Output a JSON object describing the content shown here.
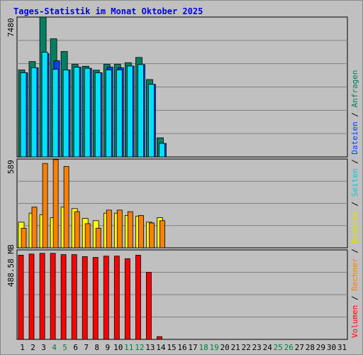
{
  "title": "Tages-Statistik im Monat Oktober 2025",
  "colors": {
    "anfragen": "#008060",
    "dateien": "#0040ff",
    "seiten": "#00e0ff",
    "besuche": "#ffff00",
    "rechner": "#ff8000",
    "volumen": "#ff0000",
    "weekend_label": "#008040",
    "weekday_label": "#000000",
    "background": "#c0c0c0"
  },
  "chart_data": [
    {
      "type": "bar",
      "title": "Tages-Statistik im Monat Oktober 2025",
      "y_max_label": "7480",
      "ylim": [
        0,
        7480
      ],
      "grid": true,
      "categories": [
        "1",
        "2",
        "3",
        "4",
        "5",
        "6",
        "7",
        "8",
        "9",
        "10",
        "11",
        "12",
        "13",
        "14",
        "15",
        "16",
        "17",
        "18",
        "19",
        "20",
        "21",
        "22",
        "23",
        "24",
        "25",
        "26",
        "27",
        "28",
        "29",
        "30",
        "31"
      ],
      "series": [
        {
          "name": "Anfragen",
          "values": [
            4650,
            5100,
            7480,
            6320,
            5640,
            4950,
            4850,
            4640,
            4950,
            4950,
            5040,
            5320,
            4140,
            1020,
            0,
            0,
            0,
            0,
            0,
            0,
            0,
            0,
            0,
            0,
            0,
            0,
            0,
            0,
            0,
            0,
            0
          ]
        },
        {
          "name": "Dateien",
          "values": [
            4500,
            4770,
            5520,
            5140,
            4650,
            4800,
            4740,
            4500,
            4800,
            4770,
            4860,
            4940,
            3880,
            720,
            0,
            0,
            0,
            0,
            0,
            0,
            0,
            0,
            0,
            0,
            0,
            0,
            0,
            0,
            0,
            0,
            0
          ]
        },
        {
          "name": "Seiten",
          "values": [
            4500,
            4770,
            5600,
            4680,
            4650,
            4800,
            4740,
            4500,
            4650,
            4650,
            4860,
            4940,
            3880,
            720,
            0,
            0,
            0,
            0,
            0,
            0,
            0,
            0,
            0,
            0,
            0,
            0,
            0,
            0,
            0,
            0,
            0
          ]
        }
      ]
    },
    {
      "type": "bar",
      "y_max_label": "589",
      "ylim": [
        0,
        589
      ],
      "grid": true,
      "categories": [
        "1",
        "2",
        "3",
        "4",
        "5",
        "6",
        "7",
        "8",
        "9",
        "10",
        "11",
        "12",
        "13",
        "14",
        "15",
        "16",
        "17",
        "18",
        "19",
        "20",
        "21",
        "22",
        "23",
        "24",
        "25",
        "26",
        "27",
        "28",
        "29",
        "30",
        "31"
      ],
      "series": [
        {
          "name": "Besuche",
          "values": [
            170,
            230,
            220,
            200,
            270,
            260,
            195,
            180,
            230,
            230,
            215,
            210,
            170,
            200,
            0,
            0,
            0,
            0,
            0,
            0,
            0,
            0,
            0,
            0,
            0,
            0,
            0,
            0,
            0,
            0,
            0
          ]
        },
        {
          "name": "Rechner",
          "values": [
            130,
            270,
            560,
            585,
            540,
            240,
            160,
            130,
            250,
            250,
            240,
            215,
            165,
            180,
            0,
            0,
            0,
            0,
            0,
            0,
            0,
            0,
            0,
            0,
            0,
            0,
            0,
            0,
            0,
            0,
            0
          ]
        }
      ]
    },
    {
      "type": "bar",
      "y_max_label": "488.58 MB",
      "ylim": [
        0,
        488.58
      ],
      "grid": true,
      "categories": [
        "1",
        "2",
        "3",
        "4",
        "5",
        "6",
        "7",
        "8",
        "9",
        "10",
        "11",
        "12",
        "13",
        "14",
        "15",
        "16",
        "17",
        "18",
        "19",
        "20",
        "21",
        "22",
        "23",
        "24",
        "25",
        "26",
        "27",
        "28",
        "29",
        "30",
        "31"
      ],
      "series": [
        {
          "name": "Volumen",
          "values": [
            460,
            466,
            470,
            470,
            463,
            463,
            452,
            448,
            455,
            455,
            441,
            460,
            366,
            15,
            0,
            0,
            0,
            0,
            0,
            0,
            0,
            0,
            0,
            0,
            0,
            0,
            0,
            0,
            0,
            0,
            0
          ]
        }
      ]
    }
  ],
  "weekend_days": [
    "4",
    "5",
    "11",
    "12",
    "18",
    "19",
    "25",
    "26"
  ],
  "legend": {
    "anfragen": "Anfragen",
    "dateien": "Dateien",
    "seiten": "Seiten",
    "besuche": "Besuche",
    "rechner": "Rechner",
    "volumen": "Volumen",
    "separator": " / "
  }
}
